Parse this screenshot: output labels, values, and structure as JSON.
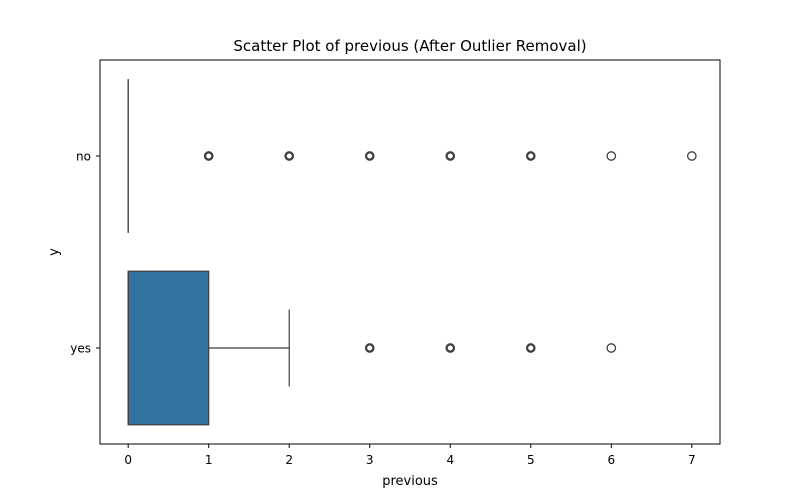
{
  "chart_data": {
    "type": "box",
    "orientation": "horizontal",
    "title": "Scatter Plot of previous (After Outlier Removal)",
    "xlabel": "previous",
    "ylabel": "y",
    "xlim": [
      -0.35,
      7.35
    ],
    "xticks": [
      0,
      1,
      2,
      3,
      4,
      5,
      6,
      7
    ],
    "categories": [
      "no",
      "yes"
    ],
    "box_color": "#3274a1",
    "line_color": "#3f3f3f",
    "grid": false,
    "series": [
      {
        "category": "no",
        "min": 0,
        "q1": 0,
        "median": 0,
        "q3": 0,
        "max": 0,
        "outliers": [
          1,
          2,
          3,
          4,
          5,
          6,
          7
        ]
      },
      {
        "category": "yes",
        "min": 0,
        "q1": 0,
        "median": 0,
        "q3": 1,
        "max": 2,
        "outliers": [
          3,
          4,
          5,
          6
        ]
      }
    ]
  }
}
